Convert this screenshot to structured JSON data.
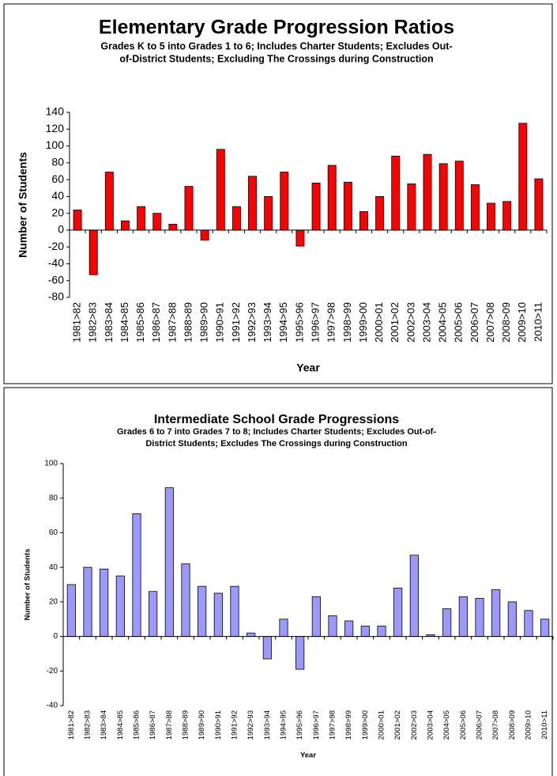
{
  "chart_data": [
    {
      "type": "bar",
      "title": "Elementary Grade Progression Ratios",
      "subtitle": [
        "Grades K to 5 into Grades 1 to 6; Includes Charter Students; Excludes Out-",
        "of-District Students; Excluding The Crossings during Construction"
      ],
      "x_label": "Year",
      "y_label": "Number of Students",
      "categories": [
        "1981>82",
        "1982>83",
        "1983>84",
        "1984>85",
        "1985>86",
        "1986>87",
        "1987>88",
        "1988>89",
        "1989>90",
        "1990>91",
        "1991>92",
        "1992>93",
        "1993>94",
        "1994>95",
        "1995>96",
        "1996>97",
        "1997>98",
        "1998>99",
        "1999>00",
        "2000>01",
        "2001>02",
        "2002>03",
        "2003>04",
        "2004>05",
        "2005>06",
        "2006>07",
        "2007>08",
        "2008>09",
        "2009>10",
        "2010>11"
      ],
      "values": [
        24,
        -53,
        69,
        11,
        28,
        20,
        7,
        52,
        -12,
        96,
        28,
        64,
        40,
        69,
        -19,
        56,
        77,
        57,
        22,
        40,
        88,
        55,
        90,
        79,
        82,
        54,
        32,
        34,
        127,
        61
      ],
      "color": "#ff0000",
      "ylim": [
        -80,
        140
      ],
      "yticks": [
        -80,
        -60,
        -40,
        -20,
        0,
        20,
        40,
        60,
        80,
        100,
        120,
        140
      ]
    },
    {
      "type": "bar",
      "title": "Intermediate School Grade Progressions",
      "subtitle": [
        "Grades 6 to 7 into Grades 7 to 8; Includes Charter Students; Excludes Out-of-",
        "District Students; Excludes The Crossings during Construction"
      ],
      "x_label": "Year",
      "y_label": "Number of Students",
      "categories": [
        "1981>82",
        "1982>83",
        "1983>84",
        "1984>85",
        "1985>86",
        "1986>87",
        "1987>88",
        "1988>89",
        "1989>90",
        "1990>91",
        "1991>92",
        "1992>93",
        "1993>94",
        "1994>95",
        "1995>96",
        "1996>97",
        "1997>98",
        "1998>99",
        "1999>00",
        "2000>01",
        "2001>02",
        "2002>03",
        "2003>04",
        "2004>05",
        "2005>06",
        "2006>07",
        "2007>08",
        "2008>09",
        "2009>10",
        "2010>11"
      ],
      "values": [
        30,
        40,
        39,
        35,
        71,
        26,
        86,
        42,
        29,
        25,
        29,
        2,
        -13,
        10,
        -19,
        23,
        12,
        9,
        6,
        6,
        28,
        47,
        1,
        16,
        23,
        22,
        27,
        20,
        15,
        10
      ],
      "color": "#9999ff",
      "ylim": [
        -40,
        100
      ],
      "yticks": [
        -40,
        -20,
        0,
        20,
        40,
        60,
        80,
        100
      ]
    }
  ]
}
